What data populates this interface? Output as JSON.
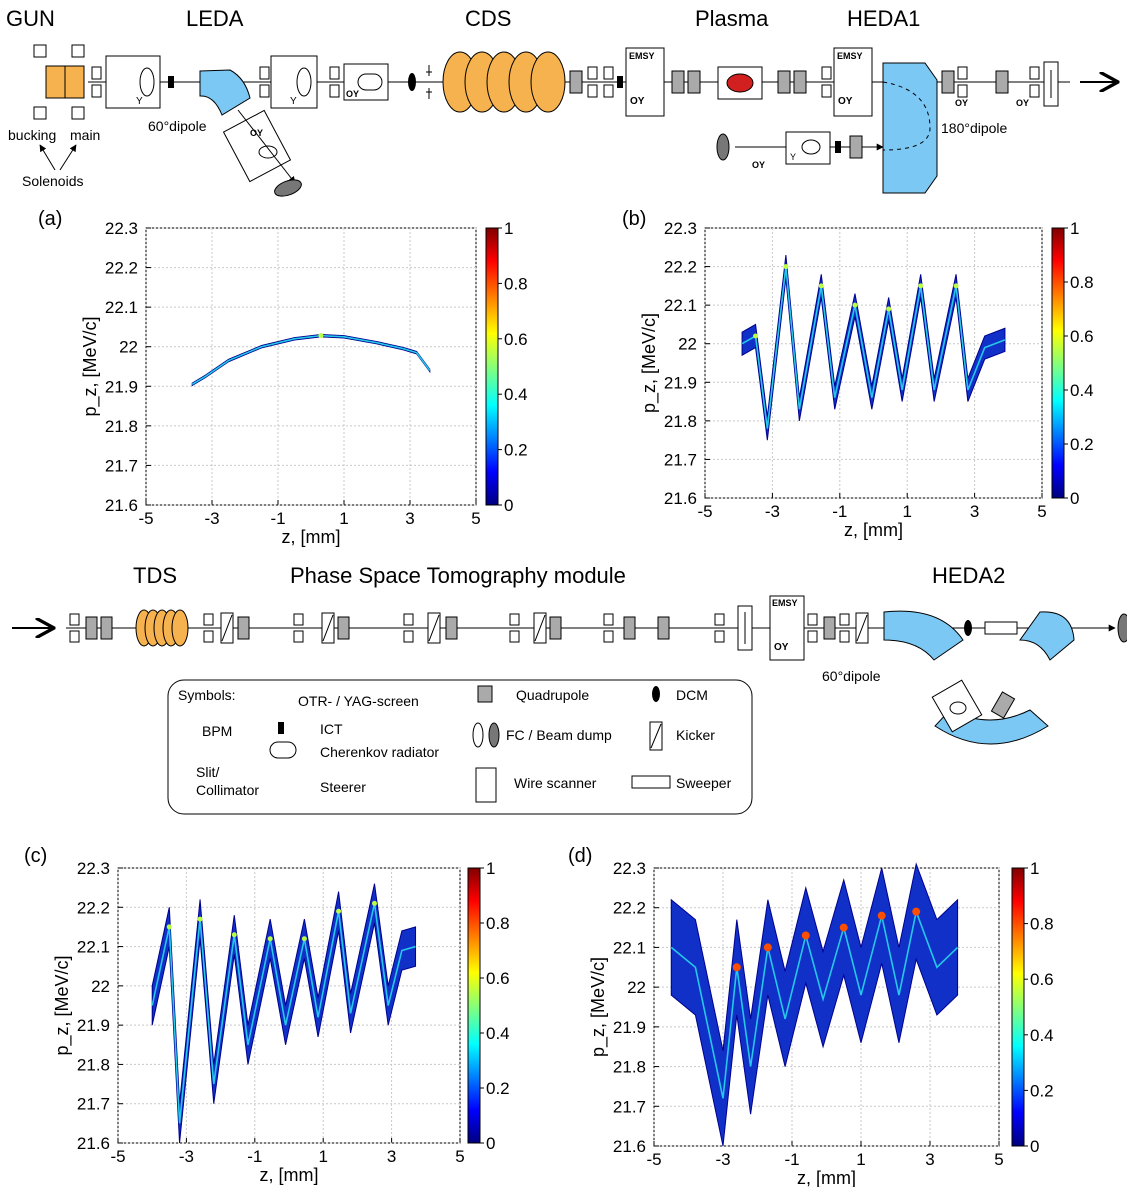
{
  "beamline_top": {
    "section_labels": [
      "GUN",
      "LEDA",
      "CDS",
      "Plasma",
      "HEDA1"
    ],
    "gun_labels": [
      "bucking",
      "main",
      "Solenoids"
    ],
    "dipole1_label": "60°dipole",
    "dipole2_label": "180°dipole",
    "emsy": "EMSY",
    "oy": "OY",
    "y": "Y"
  },
  "beamline_bottom": {
    "section_labels": [
      "TDS",
      "Phase Space Tomography module",
      "HEDA2"
    ],
    "dipole_label": "60°dipole"
  },
  "legend": {
    "title": "Symbols:",
    "items": [
      "OTR- / YAG-screen",
      "BPM",
      "ICT",
      "Cherenkov radiator",
      "Slit/",
      "Collimator",
      "Steerer",
      "Quadrupole",
      "FC / Beam dump",
      "Wire scanner",
      "DCM",
      "Kicker",
      "Sweeper"
    ]
  },
  "colorbar": {
    "ticks": [
      "0",
      "0.2",
      "0.4",
      "0.6",
      "0.8",
      "1"
    ]
  },
  "chart_data": [
    {
      "panel": "(a)",
      "type": "heatmap",
      "xlabel": "z, [mm]",
      "ylabel": "p_z, [MeV/c]",
      "xlim": [
        -5,
        5
      ],
      "ylim": [
        21.6,
        22.3
      ],
      "xticks": [
        -5,
        -3,
        -1,
        1,
        3,
        5
      ],
      "yticks": [
        21.6,
        21.7,
        21.8,
        21.9,
        22.0,
        22.1,
        22.2,
        22.3
      ],
      "grid": true,
      "colorbar": [
        0,
        1
      ],
      "band": {
        "z": [
          -3.6,
          -3.2,
          -2.5,
          -1.5,
          -0.5,
          0.3,
          1.0,
          2.0,
          2.8,
          3.2,
          3.6
        ],
        "pz": [
          21.905,
          21.925,
          21.965,
          22.0,
          22.02,
          22.028,
          22.025,
          22.01,
          21.995,
          21.985,
          21.94
        ],
        "half_width": 0.003
      }
    },
    {
      "panel": "(b)",
      "type": "heatmap",
      "xlabel": "z, [mm]",
      "ylabel": "p_z, [MeV/c]",
      "xlim": [
        -5,
        5
      ],
      "ylim": [
        21.6,
        22.3
      ],
      "xticks": [
        -5,
        -3,
        -1,
        1,
        3,
        5
      ],
      "yticks": [
        21.6,
        21.7,
        21.8,
        21.9,
        22.0,
        22.1,
        22.2,
        22.3
      ],
      "grid": true,
      "colorbar": [
        0,
        1
      ],
      "band": {
        "z": [
          -3.9,
          -3.5,
          -3.15,
          -2.6,
          -2.2,
          -1.55,
          -1.15,
          -0.55,
          -0.05,
          0.45,
          0.85,
          1.4,
          1.8,
          2.45,
          2.8,
          3.3,
          3.9
        ],
        "pz": [
          22.0,
          22.02,
          21.78,
          22.2,
          21.83,
          22.15,
          21.86,
          22.1,
          21.86,
          22.09,
          21.88,
          22.15,
          21.88,
          22.15,
          21.88,
          21.99,
          22.01
        ],
        "half_width": 0.03
      }
    },
    {
      "panel": "(c)",
      "type": "heatmap",
      "xlabel": "z, [mm]",
      "ylabel": "p_z, [MeV/c]",
      "xlim": [
        -5,
        5
      ],
      "ylim": [
        21.6,
        22.3
      ],
      "xticks": [
        -5,
        -3,
        -1,
        1,
        3,
        5
      ],
      "yticks": [
        21.6,
        21.7,
        21.8,
        21.9,
        22.0,
        22.1,
        22.2,
        22.3
      ],
      "grid": true,
      "colorbar": [
        0,
        1
      ],
      "band": {
        "z": [
          -4.0,
          -3.5,
          -3.2,
          -2.6,
          -2.2,
          -1.6,
          -1.2,
          -0.55,
          -0.1,
          0.45,
          0.85,
          1.45,
          1.8,
          2.5,
          2.9,
          3.3,
          3.7
        ],
        "pz": [
          21.95,
          22.15,
          21.65,
          22.17,
          21.75,
          22.13,
          21.85,
          22.12,
          21.9,
          22.12,
          21.92,
          22.19,
          21.93,
          22.21,
          21.95,
          22.09,
          22.1
        ],
        "half_width": 0.05
      }
    },
    {
      "panel": "(d)",
      "type": "heatmap",
      "xlabel": "z, [mm]",
      "ylabel": "p_z, [MeV/c]",
      "xlim": [
        -5,
        5
      ],
      "ylim": [
        21.6,
        22.3
      ],
      "xticks": [
        -5,
        -3,
        -1,
        1,
        3,
        5
      ],
      "yticks": [
        21.6,
        21.7,
        21.8,
        21.9,
        22.0,
        22.1,
        22.2,
        22.3
      ],
      "grid": true,
      "colorbar": [
        0,
        1
      ],
      "band": {
        "z": [
          -4.5,
          -3.8,
          -3.0,
          -2.6,
          -2.2,
          -1.7,
          -1.2,
          -0.6,
          -0.1,
          0.5,
          1.0,
          1.6,
          2.1,
          2.6,
          3.2,
          3.8
        ],
        "pz": [
          22.1,
          22.05,
          21.72,
          22.05,
          21.8,
          22.1,
          21.92,
          22.13,
          21.97,
          22.15,
          21.98,
          22.18,
          21.98,
          22.19,
          22.05,
          22.1
        ],
        "half_width": 0.12
      }
    }
  ]
}
